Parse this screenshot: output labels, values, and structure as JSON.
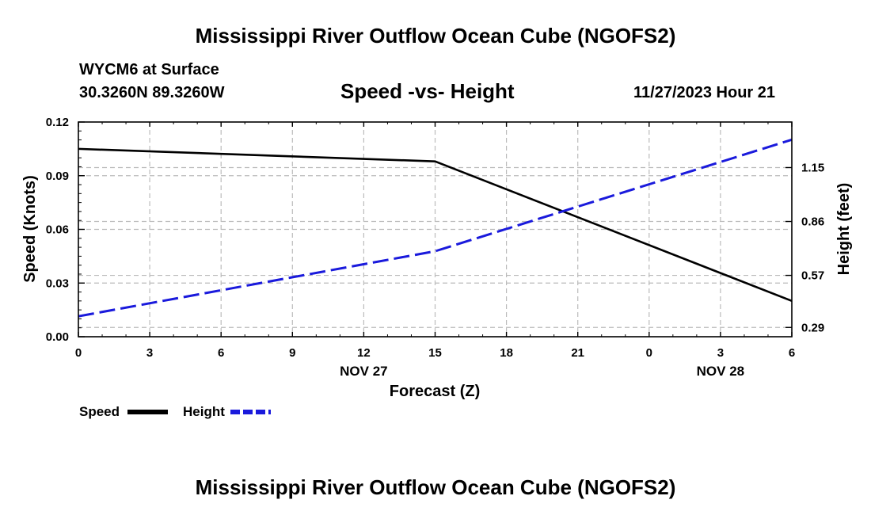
{
  "page": {
    "title_top": "Mississippi River Outflow Ocean Cube (NGOFS2)",
    "title_bottom": "Mississippi River Outflow Ocean Cube (NGOFS2)",
    "station_line": "WYCM6 at Surface",
    "coords_line": "30.3260N  89.3260W",
    "subtitle": "Speed -vs- Height",
    "datetime": "11/27/2023 Hour 21"
  },
  "colors": {
    "speed": "#000000",
    "height": "#1a1adc",
    "grid": "#bbbbbb"
  },
  "chart_data": {
    "type": "line",
    "title": "Speed -vs- Height",
    "xlabel": "Forecast (Z)",
    "ylabel": "Speed (Knots)",
    "y2label": "Height (feet)",
    "x_hours": [
      0,
      3,
      6,
      9,
      12,
      15,
      18,
      21,
      24,
      27,
      30
    ],
    "x_tick_labels": [
      "0",
      "3",
      "6",
      "9",
      "12",
      "15",
      "18",
      "21",
      "0",
      "3",
      "6"
    ],
    "date_labels": [
      {
        "label": "NOV 27",
        "at_hour": 12
      },
      {
        "label": "NOV 28",
        "at_hour": 27
      }
    ],
    "xlim": [
      0,
      30
    ],
    "ylim": [
      0,
      0.12
    ],
    "y_ticks": [
      "0.00",
      "0.03",
      "0.06",
      "0.09",
      "0.12"
    ],
    "y_tick_values": [
      0,
      0.03,
      0.06,
      0.09,
      0.12
    ],
    "y2_ticks": [
      "0.29",
      "0.57",
      "0.86",
      "1.15"
    ],
    "y2_tick_values": [
      0.29,
      0.57,
      0.86,
      1.15
    ],
    "y2lim": [
      0.24,
      1.395
    ],
    "grid": true,
    "series": [
      {
        "name": "Speed",
        "axis": "left",
        "style": "solid",
        "x": [
          0,
          15,
          30
        ],
        "values": [
          0.105,
          0.098,
          0.02
        ]
      },
      {
        "name": "Height",
        "axis": "right",
        "style": "dashed",
        "x": [
          0,
          15,
          30
        ],
        "values": [
          0.35,
          0.7,
          1.3
        ]
      }
    ],
    "legend": [
      "Speed",
      "Height"
    ],
    "legend_position": "bottom-left"
  }
}
